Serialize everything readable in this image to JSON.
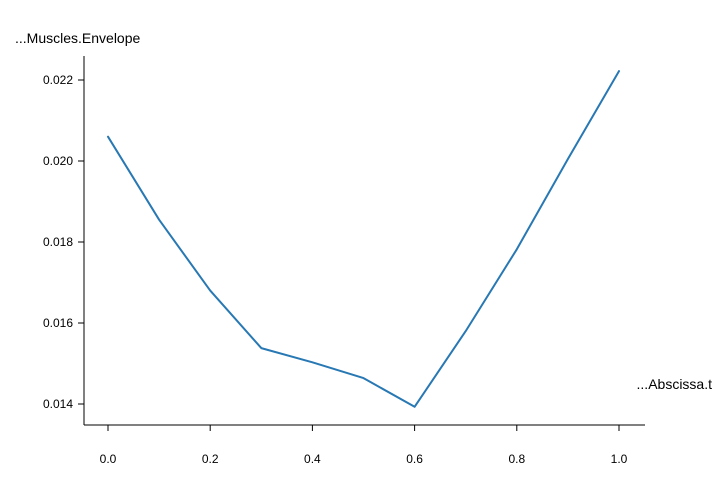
{
  "chart_data": {
    "type": "line",
    "title": "",
    "xlabel": "...Abscissa.t",
    "ylabel": "...Muscles.Envelope",
    "xlim": [
      -0.05,
      1.05
    ],
    "ylim": [
      0.0135,
      0.02265
    ],
    "x_ticks": [
      0.0,
      0.2,
      0.4,
      0.6,
      0.8,
      1.0
    ],
    "x_tick_labels": [
      "0.0",
      "0.2",
      "0.4",
      "0.6",
      "0.8",
      "1.0"
    ],
    "y_ticks": [
      0.014,
      0.016,
      0.018,
      0.02,
      0.022
    ],
    "y_tick_labels": [
      "0.014",
      "0.016",
      "0.018",
      "0.020",
      "0.022"
    ],
    "grid": false,
    "series": [
      {
        "color": "#2878b4",
        "x": [
          0.0,
          0.1,
          0.2,
          0.3,
          0.4,
          0.5,
          0.6,
          0.7,
          0.8,
          0.9,
          1.0
        ],
        "y": [
          0.0206,
          0.01855,
          0.0168,
          0.01538,
          0.01503,
          0.01464,
          0.01393,
          0.0158,
          0.01782,
          0.02005,
          0.02222
        ]
      }
    ]
  }
}
